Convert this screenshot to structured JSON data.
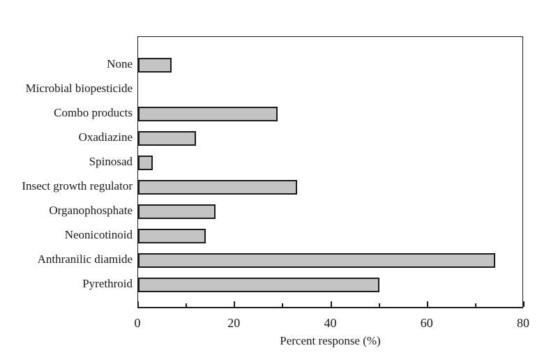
{
  "figure": {
    "background_color": "#ffffff",
    "frame_color": "#1a1a1a"
  },
  "chart_data": {
    "type": "bar",
    "orientation": "horizontal",
    "title": "",
    "xlabel": "Percent response (%)",
    "ylabel": "",
    "categories": [
      "None",
      "Microbial biopesticide",
      "Combo products",
      "Oxadiazine",
      "Spinosad",
      "Insect growth regulator",
      "Organophosphate",
      "Neonicotinoid",
      "Anthranilic diamide",
      "Pyrethroid"
    ],
    "values": [
      7,
      0,
      29,
      12,
      3,
      33,
      16,
      14,
      74,
      50
    ],
    "xlim": [
      0,
      80
    ],
    "x_major_ticks": [
      0,
      20,
      40,
      60,
      80
    ],
    "x_minor_ticks": [
      10,
      30,
      50,
      70
    ],
    "grid": false,
    "legend": false,
    "bar_fill_color": "#c4c4c4",
    "bar_border_color": "#1a1a1a"
  }
}
